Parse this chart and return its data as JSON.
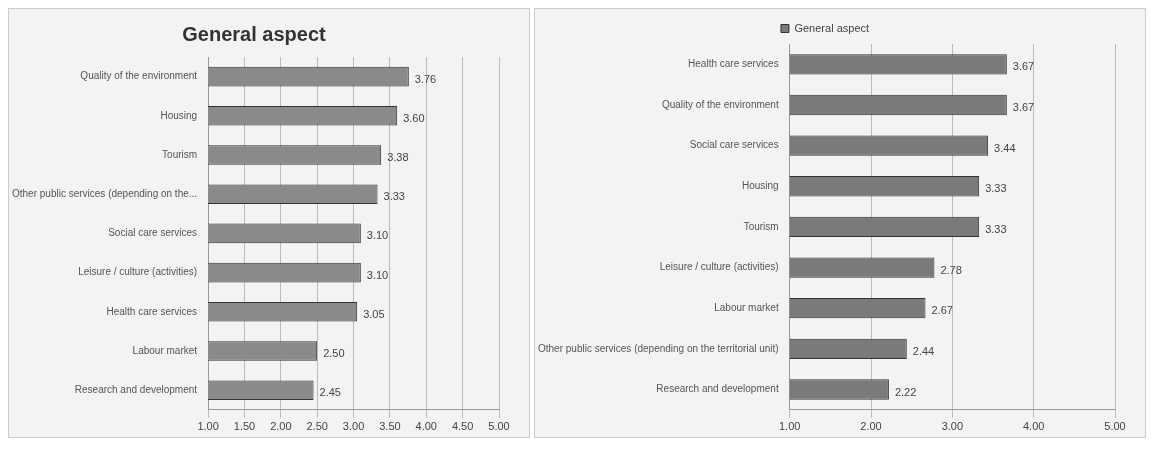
{
  "chart_data": [
    {
      "type": "bar",
      "orientation": "horizontal",
      "title": "General aspect",
      "categories": [
        "Quality of the environment",
        "Housing",
        "Tourism",
        "Other public services (depending on the...",
        "Social care services",
        "Leisure / culture (activities)",
        "Health care services",
        "Labour market",
        "Research and development"
      ],
      "series": [
        {
          "color": "#8a8a8a",
          "values": [
            3.76,
            3.6,
            3.38,
            3.33,
            3.1,
            3.1,
            3.05,
            2.5,
            2.45
          ],
          "value_labels": [
            "3.76",
            "3.60",
            "3.38",
            "3.33",
            "3.10",
            "3.10",
            "3.05",
            "2.50",
            "2.45"
          ]
        }
      ],
      "xlim": [
        1,
        5
      ],
      "xticks": [
        {
          "value": 1,
          "label": "1.00"
        },
        {
          "value": 1.5,
          "label": "1.50"
        },
        {
          "value": 2,
          "label": "2.00"
        },
        {
          "value": 2.5,
          "label": "2.50"
        },
        {
          "value": 3,
          "label": "3.00"
        },
        {
          "value": 3.5,
          "label": "3.50"
        },
        {
          "value": 4,
          "label": "4.00"
        },
        {
          "value": 4.5,
          "label": "4.50"
        },
        {
          "value": 5,
          "label": "5.00"
        }
      ],
      "grid": "x"
    },
    {
      "type": "bar",
      "orientation": "horizontal",
      "categories": [
        "Health care services",
        "Quality of the environment",
        "Social care services",
        "Housing",
        "Tourism",
        "Leisure / culture (activities)",
        "Labour market",
        "Other public services (depending on the territorial unit)",
        "Research and development"
      ],
      "series": [
        {
          "name": "General aspect",
          "color": "#7a7a7a",
          "values": [
            3.67,
            3.67,
            3.44,
            3.33,
            3.33,
            2.78,
            2.67,
            2.44,
            2.22
          ],
          "value_labels": [
            "3.67",
            "3.67",
            "3.44",
            "3.33",
            "3.33",
            "2.78",
            "2.67",
            "2.44",
            "2.22"
          ]
        }
      ],
      "xlim": [
        1,
        5
      ],
      "xticks": [
        {
          "value": 1,
          "label": "1.00"
        },
        {
          "value": 2,
          "label": "2.00"
        },
        {
          "value": 3,
          "label": "3.00"
        },
        {
          "value": 4,
          "label": "4.00"
        },
        {
          "value": 5,
          "label": "5.00"
        }
      ],
      "grid": "x",
      "legend": "top"
    }
  ]
}
